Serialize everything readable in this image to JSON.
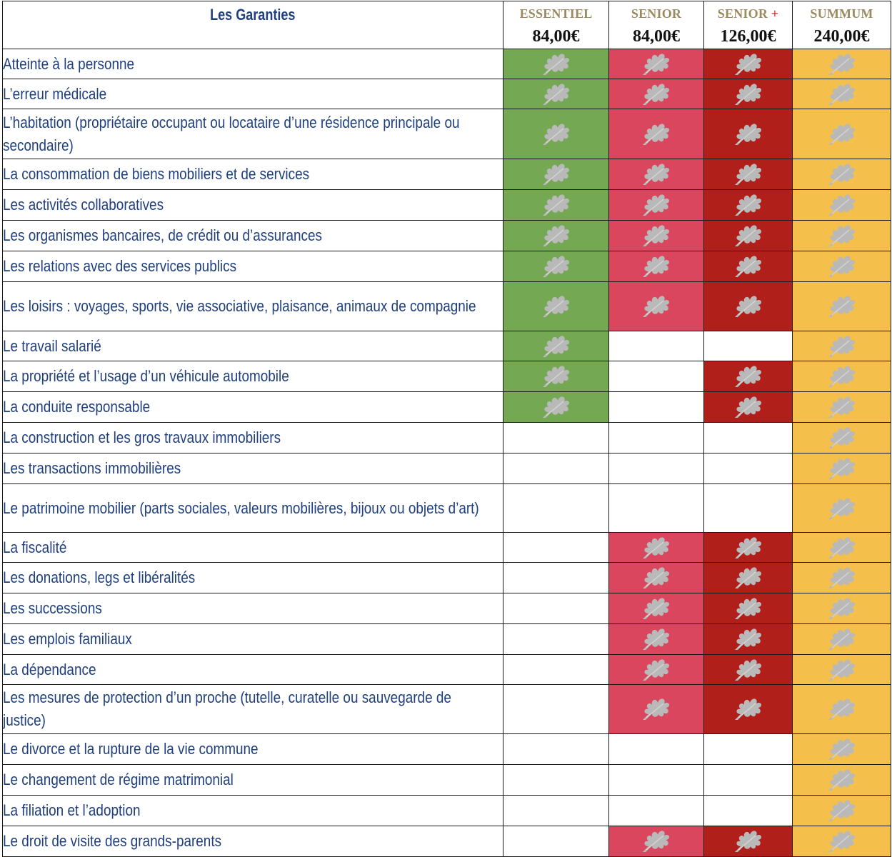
{
  "header": {
    "title": "Les Garanties",
    "plans": [
      {
        "name": "ESSENTIEL",
        "plus": "",
        "price": "84,00€",
        "color": "#9b8a5f",
        "fill": "#74a853",
        "key": "essentiel"
      },
      {
        "name": "SENIOR",
        "plus": "",
        "price": "84,00€",
        "color": "#9b8a5f",
        "fill": "#d9465d",
        "key": "senior"
      },
      {
        "name": "SENIOR ",
        "plus": "+",
        "price": "126,00€",
        "color": "#9b8a5f",
        "fill": "#b11f1a",
        "key": "senior-plus"
      },
      {
        "name": "SUMMUM",
        "plus": "",
        "price": "240,00€",
        "color": "#9b8a5f",
        "fill": "#f4c04b",
        "key": "summum"
      }
    ]
  },
  "icon": "oak-leaf-icon",
  "rows": [
    {
      "label": "Atteinte à la personne",
      "cover": [
        true,
        true,
        true,
        true
      ],
      "h": 42
    },
    {
      "label": "L’erreur médicale",
      "cover": [
        true,
        true,
        true,
        true
      ],
      "h": 42
    },
    {
      "label": "L’habitation (propriétaire occupant ou locataire d’une résidence principale ou secondaire)",
      "cover": [
        true,
        true,
        true,
        true
      ],
      "h": 70
    },
    {
      "label": "La consommation de biens mobiliers et de services",
      "cover": [
        true,
        true,
        true,
        true
      ],
      "h": 43
    },
    {
      "label": "Les activités collaboratives",
      "cover": [
        true,
        true,
        true,
        true
      ],
      "h": 43
    },
    {
      "label": "Les organismes bancaires, de crédit ou d’assurances",
      "cover": [
        true,
        true,
        true,
        true
      ],
      "h": 43
    },
    {
      "label": "Les relations avec des services publics",
      "cover": [
        true,
        true,
        true,
        true
      ],
      "h": 43
    },
    {
      "label": "Les loisirs : voyages, sports, vie associative, plaisance, animaux de compagnie",
      "cover": [
        true,
        true,
        true,
        true
      ],
      "h": 69
    },
    {
      "label": "Le travail salarié",
      "cover": [
        true,
        false,
        false,
        true
      ],
      "h": 42
    },
    {
      "label": "La propriété et l’usage d’un véhicule automobile",
      "cover": [
        true,
        false,
        true,
        true
      ],
      "h": 43
    },
    {
      "label": "La conduite responsable",
      "cover": [
        true,
        false,
        true,
        true
      ],
      "h": 43
    },
    {
      "label": "La construction et les gros travaux immobiliers",
      "cover": [
        false,
        false,
        false,
        true
      ],
      "h": 43
    },
    {
      "label": "Les transactions immobilières",
      "cover": [
        false,
        false,
        false,
        true
      ],
      "h": 43
    },
    {
      "label": "Le patrimoine mobilier (parts sociales, valeurs mobilières, bijoux ou objets d’art)",
      "cover": [
        false,
        false,
        false,
        true
      ],
      "h": 68
    },
    {
      "label": "La fiscalité",
      "cover": [
        false,
        true,
        true,
        true
      ],
      "h": 42
    },
    {
      "label": "Les donations, legs et libéralités",
      "cover": [
        false,
        true,
        true,
        true
      ],
      "h": 43
    },
    {
      "label": "Les successions",
      "cover": [
        false,
        true,
        true,
        true
      ],
      "h": 43
    },
    {
      "label": "Les emplois familiaux",
      "cover": [
        false,
        true,
        true,
        true
      ],
      "h": 43
    },
    {
      "label": "La dépendance",
      "cover": [
        false,
        true,
        true,
        true
      ],
      "h": 42
    },
    {
      "label": "Les mesures de protection d’un proche (tutelle, curatelle ou sauvegarde de justice)",
      "cover": [
        false,
        true,
        true,
        true
      ],
      "h": 69
    },
    {
      "label": "Le divorce et la rupture de la vie commune",
      "cover": [
        false,
        false,
        false,
        true
      ],
      "h": 43
    },
    {
      "label": "Le changement de régime matrimonial",
      "cover": [
        false,
        false,
        false,
        true
      ],
      "h": 43
    },
    {
      "label": "La filiation et l’adoption",
      "cover": [
        false,
        false,
        false,
        true
      ],
      "h": 43
    },
    {
      "label": "Le droit de visite des grands-parents",
      "cover": [
        false,
        true,
        true,
        true
      ],
      "h": 43
    }
  ]
}
